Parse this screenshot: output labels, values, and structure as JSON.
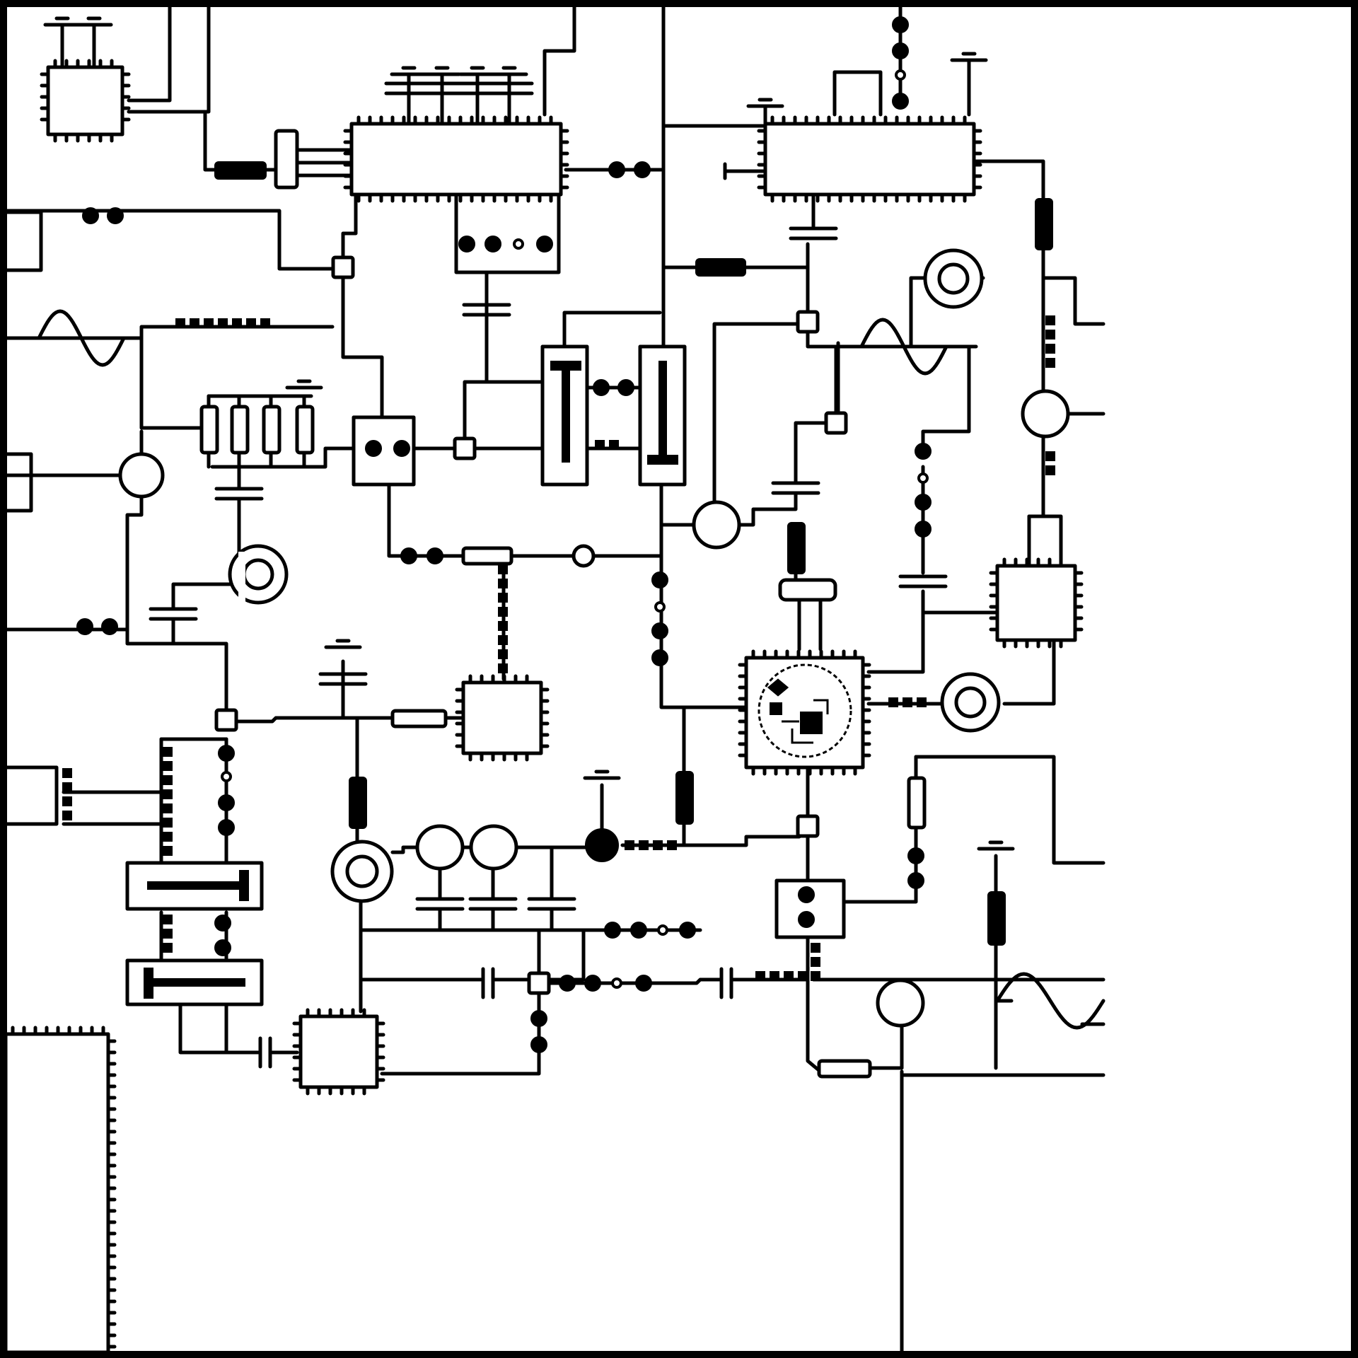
{
  "diagram": {
    "type": "circuit-schematic",
    "labels_present": false,
    "colors": {
      "ink": "#000000",
      "paper": "#ffffff"
    },
    "component_kinds": [
      "ic-chip",
      "resistor",
      "capacitor",
      "inductor",
      "fuse",
      "junction",
      "slider-potentiometer",
      "rotary-component",
      "meter",
      "signal-source",
      "ground",
      "relay"
    ]
  }
}
